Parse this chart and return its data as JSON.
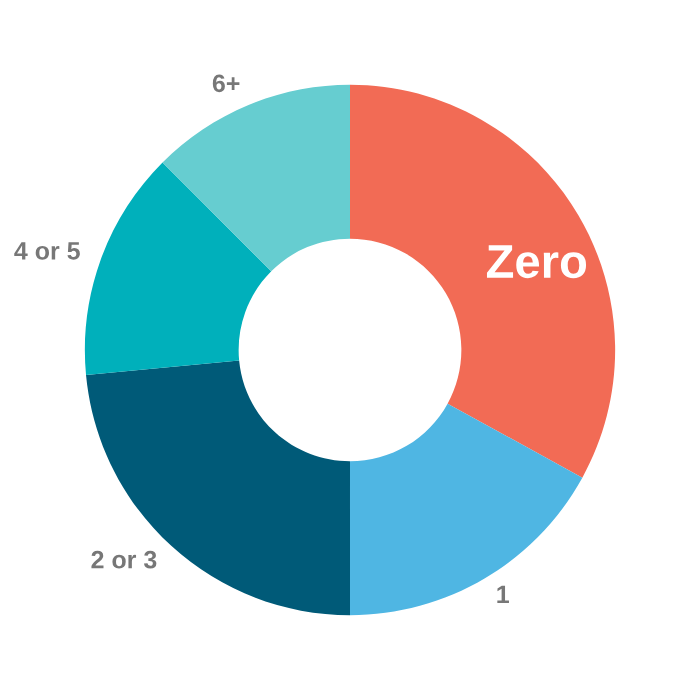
{
  "chart_data": {
    "type": "donut",
    "categories": [
      "Zero",
      "1",
      "2 or 3",
      "4 or 5",
      "6+"
    ],
    "values": [
      33,
      17,
      23.5,
      14,
      12.5
    ],
    "colors": [
      "#f26b55",
      "#4fb6e3",
      "#005a78",
      "#00b0bb",
      "#66cdd0"
    ],
    "legend": false
  }
}
